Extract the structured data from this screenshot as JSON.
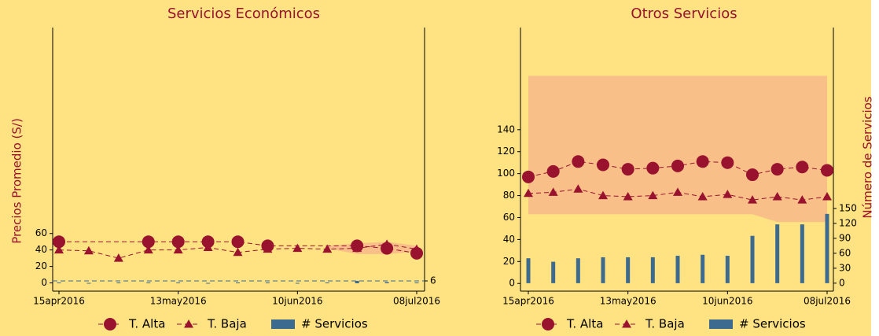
{
  "chart_data": [
    {
      "type": "combo",
      "title": "Servicios Económicos",
      "ylabel": "Precios Promedio (S/)",
      "xlim": [
        "2016-04-15",
        "2016-07-08"
      ],
      "xticks": [
        {
          "value": "2016-04-15",
          "label": "15apr2016"
        },
        {
          "value": "2016-05-13",
          "label": "13may2016"
        },
        {
          "value": "2016-06-10",
          "label": "10jun2016"
        },
        {
          "value": "2016-07-08",
          "label": "08jul2016"
        }
      ],
      "ylim": [
        -10,
        310
      ],
      "yticks": [
        0,
        20,
        40,
        60
      ],
      "y2lim": [
        -20,
        650
      ],
      "y2ticks": [
        6
      ],
      "y2grid": true,
      "band": {
        "color": "#f7b98a",
        "x": [
          "2016-06-17",
          "2016-06-24",
          "2016-07-01",
          "2016-07-08"
        ],
        "lower": [
          42,
          35,
          35,
          38
        ],
        "upper": [
          45,
          48,
          50,
          45
        ]
      },
      "series": [
        {
          "name": "T. Alta",
          "kind": "line",
          "marker": "circle",
          "color": "#99122e",
          "x": [
            "2016-04-15",
            "2016-05-06",
            "2016-05-13",
            "2016-05-20",
            "2016-05-27",
            "2016-06-03",
            "2016-06-24",
            "2016-07-01",
            "2016-07-08"
          ],
          "values": [
            50,
            50,
            50,
            50,
            50,
            45,
            45,
            42,
            36
          ]
        },
        {
          "name": "T. Baja",
          "kind": "line",
          "marker": "triangle",
          "color": "#99122e",
          "x": [
            "2016-04-15",
            "2016-04-22",
            "2016-04-29",
            "2016-05-06",
            "2016-05-13",
            "2016-05-20",
            "2016-05-27",
            "2016-06-03",
            "2016-06-10",
            "2016-06-17",
            "2016-06-24",
            "2016-07-01",
            "2016-07-08"
          ],
          "values": [
            40,
            39,
            30,
            40,
            40,
            43,
            37,
            41,
            42,
            41,
            42,
            47,
            41
          ]
        },
        {
          "name": "# Servicios",
          "kind": "bar",
          "axis": "y2",
          "color": "#3d6b8f",
          "x": [
            "2016-04-15",
            "2016-04-22",
            "2016-04-29",
            "2016-05-06",
            "2016-05-13",
            "2016-05-20",
            "2016-05-27",
            "2016-06-03",
            "2016-06-10",
            "2016-06-17",
            "2016-06-24",
            "2016-07-01",
            "2016-07-08"
          ],
          "values": [
            2,
            1,
            2,
            2,
            2,
            1,
            2,
            2,
            1,
            2,
            6,
            3,
            2
          ]
        }
      ]
    },
    {
      "type": "combo",
      "title": "Otros Servicios",
      "y2label": "Número de Servicios",
      "xlim": [
        "2016-04-15",
        "2016-07-08"
      ],
      "xticks": [
        {
          "value": "2016-04-15",
          "label": "15apr2016"
        },
        {
          "value": "2016-05-13",
          "label": "13may2016"
        },
        {
          "value": "2016-06-10",
          "label": "10jun2016"
        },
        {
          "value": "2016-07-08",
          "label": "08jul2016"
        }
      ],
      "ylim": [
        -7,
        233
      ],
      "yticks": [
        0,
        20,
        40,
        60,
        80,
        100,
        120,
        140
      ],
      "y2lim": [
        -16,
        513
      ],
      "y2ticks": [
        0,
        30,
        60,
        90,
        120,
        150
      ],
      "y2grid": false,
      "band": {
        "color": "#f7b98a",
        "x": [
          "2016-04-15",
          "2016-06-17",
          "2016-06-24",
          "2016-07-08"
        ],
        "lower": [
          63,
          63,
          56,
          56
        ],
        "upper": [
          189,
          189,
          189,
          189
        ]
      },
      "series": [
        {
          "name": "T. Alta",
          "kind": "line",
          "marker": "circle",
          "color": "#99122e",
          "x": [
            "2016-04-15",
            "2016-04-22",
            "2016-04-29",
            "2016-05-06",
            "2016-05-13",
            "2016-05-20",
            "2016-05-27",
            "2016-06-03",
            "2016-06-10",
            "2016-06-17",
            "2016-06-24",
            "2016-07-01",
            "2016-07-08"
          ],
          "values": [
            97,
            102,
            111,
            108,
            104,
            105,
            107,
            111,
            110,
            99,
            104,
            106,
            103
          ]
        },
        {
          "name": "T. Baja",
          "kind": "line",
          "marker": "triangle",
          "color": "#99122e",
          "x": [
            "2016-04-15",
            "2016-04-22",
            "2016-04-29",
            "2016-05-06",
            "2016-05-13",
            "2016-05-20",
            "2016-05-27",
            "2016-06-03",
            "2016-06-10",
            "2016-06-17",
            "2016-06-24",
            "2016-07-01",
            "2016-07-08"
          ],
          "values": [
            82,
            83,
            86,
            80,
            79,
            80,
            83,
            79,
            81,
            76,
            79,
            76,
            79
          ]
        },
        {
          "name": "# Servicios",
          "kind": "bar",
          "axis": "y2",
          "color": "#3d6b8f",
          "x": [
            "2016-04-15",
            "2016-04-22",
            "2016-04-29",
            "2016-05-06",
            "2016-05-13",
            "2016-05-20",
            "2016-05-27",
            "2016-06-03",
            "2016-06-10",
            "2016-06-17",
            "2016-06-24",
            "2016-07-01",
            "2016-07-08"
          ],
          "values": [
            50,
            43,
            50,
            52,
            52,
            52,
            55,
            57,
            55,
            95,
            118,
            118,
            139
          ]
        }
      ]
    }
  ]
}
